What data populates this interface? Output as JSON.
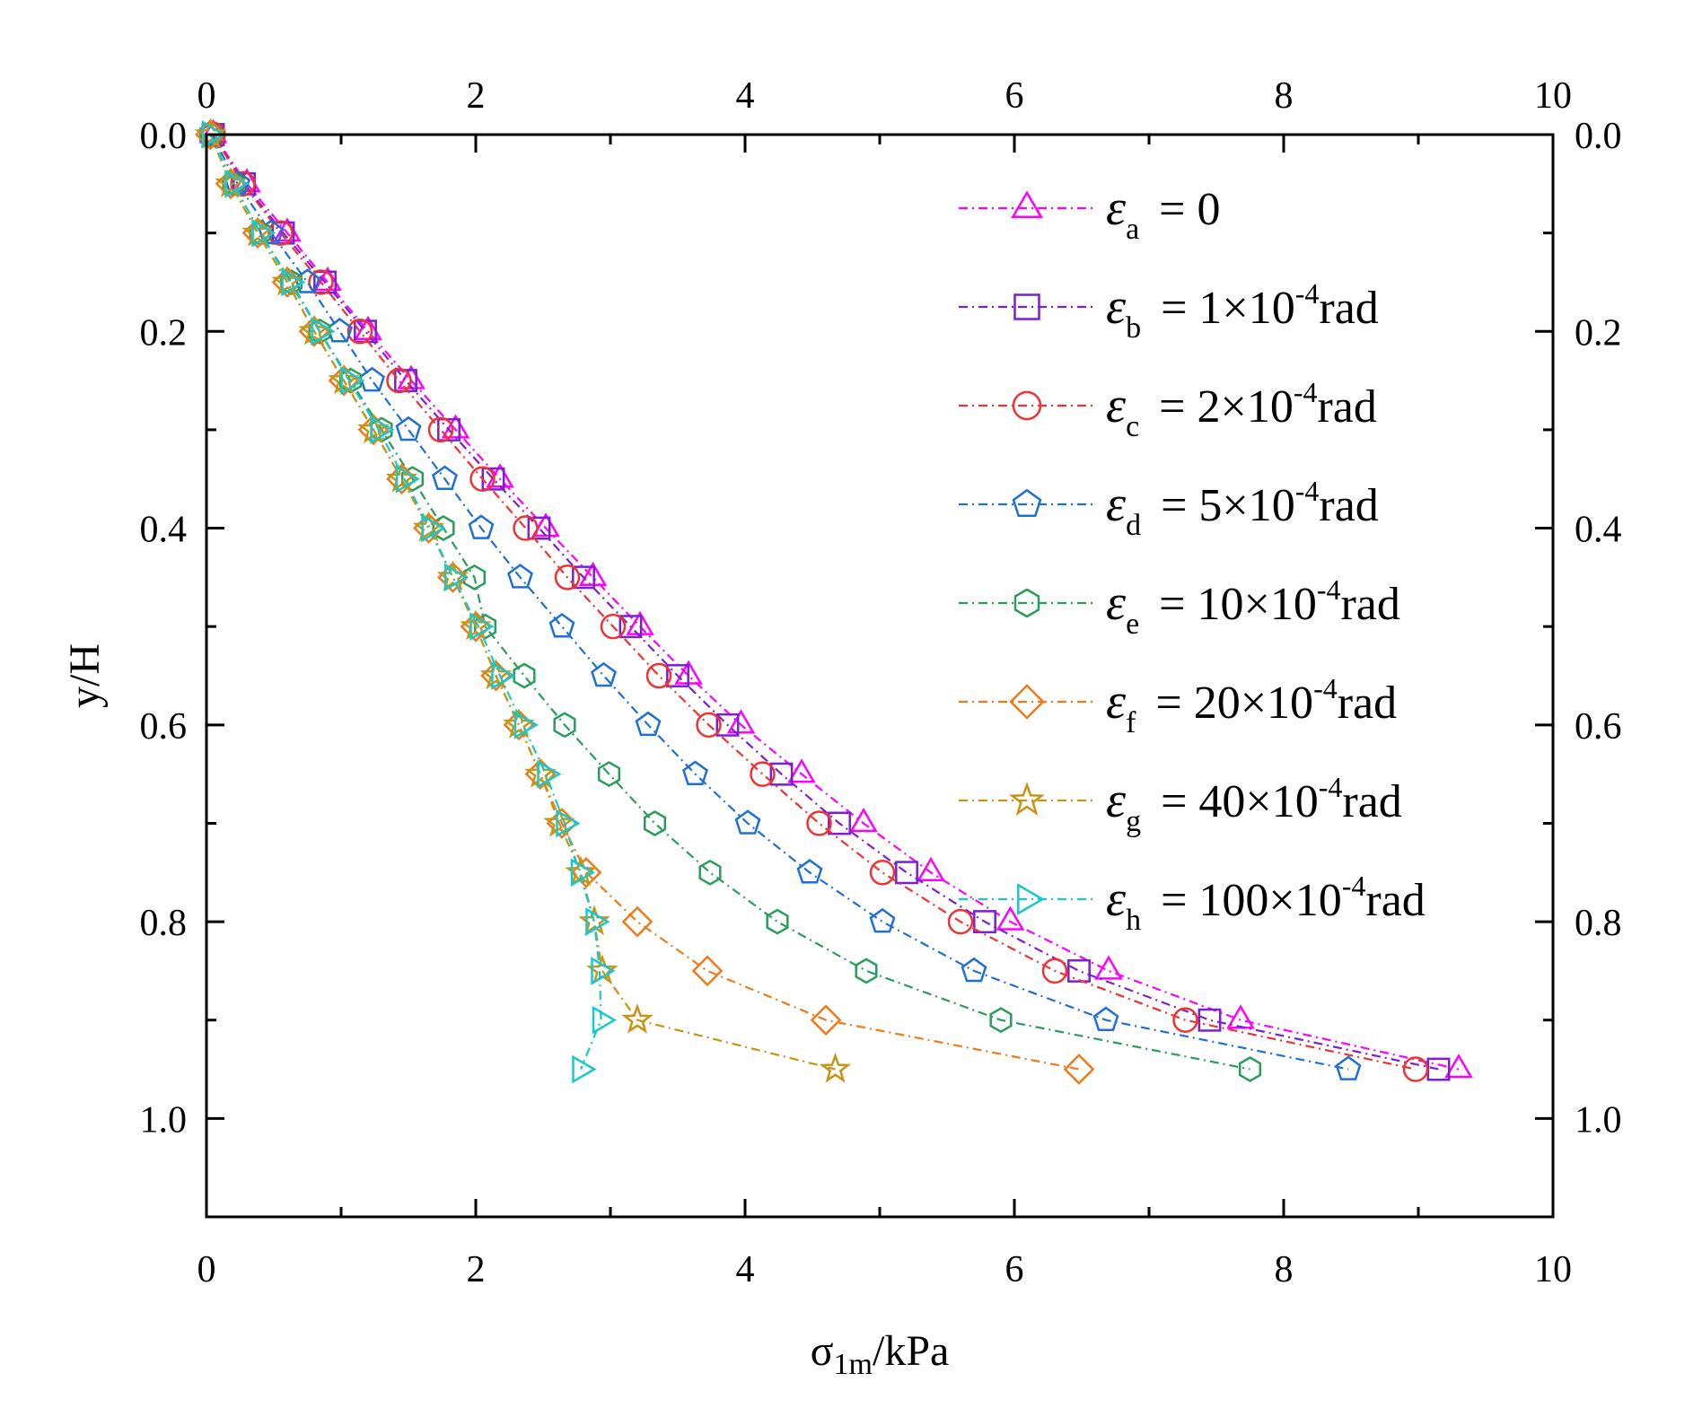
{
  "chart_data": {
    "type": "line",
    "xlabel": "σ1m/kPa",
    "xlabel_main": "σ",
    "xlabel_sub": "1m",
    "xlabel_rest": "/kPa",
    "ylabel": "y/H",
    "xlim": [
      0,
      10
    ],
    "ylim": [
      0,
      1.1
    ],
    "y_inverted": true,
    "x_ticks": [
      0,
      2,
      4,
      6,
      8,
      10
    ],
    "x_tick_labels": [
      "0",
      "2",
      "4",
      "6",
      "8",
      "10"
    ],
    "y_ticks": [
      0,
      0.2,
      0.4,
      0.6,
      0.8,
      1.0
    ],
    "y_tick_labels": [
      "0.0",
      "0.2",
      "0.4",
      "0.6",
      "0.8",
      "1.0"
    ],
    "legend_position": "top-right",
    "y": [
      0,
      0.05,
      0.1,
      0.15,
      0.2,
      0.25,
      0.3,
      0.35,
      0.4,
      0.45,
      0.5,
      0.55,
      0.6,
      0.65,
      0.7,
      0.75,
      0.8,
      0.85,
      0.9,
      0.95
    ],
    "series": [
      {
        "name": "εa = 0",
        "symbol": "ε",
        "sub": "a",
        "label_pre": "= 0",
        "sup": "",
        "label_post": "",
        "marker": "triangle-up",
        "color": "#ff00ff",
        "x": [
          0.05,
          0.3,
          0.6,
          0.9,
          1.2,
          1.52,
          1.85,
          2.18,
          2.52,
          2.87,
          3.22,
          3.58,
          3.97,
          4.42,
          4.88,
          5.38,
          5.97,
          6.7,
          7.68,
          9.3
        ]
      },
      {
        "name": "εb = 1×10-4rad",
        "symbol": "ε",
        "sub": "b",
        "label_pre": "= 1×10",
        "sup": "-4",
        "label_post": "rad",
        "marker": "square",
        "color": "#7a1fd6",
        "x": [
          0.05,
          0.28,
          0.57,
          0.88,
          1.18,
          1.48,
          1.8,
          2.13,
          2.47,
          2.8,
          3.15,
          3.5,
          3.87,
          4.27,
          4.7,
          5.2,
          5.78,
          6.48,
          7.45,
          9.15
        ]
      },
      {
        "name": "εc = 2×10-4rad",
        "symbol": "ε",
        "sub": "c",
        "label_pre": "= 2×10",
        "sup": "-4",
        "label_post": "rad",
        "marker": "circle",
        "color": "#ee3333",
        "x": [
          0.05,
          0.27,
          0.55,
          0.85,
          1.14,
          1.43,
          1.74,
          2.05,
          2.37,
          2.68,
          3.02,
          3.36,
          3.73,
          4.13,
          4.55,
          5.02,
          5.6,
          6.3,
          7.27,
          8.98
        ]
      },
      {
        "name": "εd = 5×10-4rad",
        "symbol": "ε",
        "sub": "d",
        "label_pre": "= 5×10",
        "sup": "-4",
        "label_post": "rad",
        "marker": "pentagon",
        "color": "#1f6fd8",
        "x": [
          0.04,
          0.23,
          0.48,
          0.75,
          0.99,
          1.23,
          1.5,
          1.77,
          2.04,
          2.33,
          2.64,
          2.95,
          3.28,
          3.63,
          4.02,
          4.48,
          5.02,
          5.7,
          6.68,
          8.48
        ]
      },
      {
        "name": "εe = 10×10-4rad",
        "symbol": "ε",
        "sub": "e",
        "label_pre": "= 10×10",
        "sup": "-4",
        "label_post": "rad",
        "marker": "hexagon",
        "color": "#2a9d5c",
        "x": [
          0.03,
          0.2,
          0.4,
          0.63,
          0.84,
          1.07,
          1.3,
          1.53,
          1.76,
          1.99,
          2.07,
          2.36,
          2.66,
          2.99,
          3.33,
          3.74,
          4.24,
          4.9,
          5.9,
          7.75
        ]
      },
      {
        "name": "εf = 20×10-4rad",
        "symbol": "ε",
        "sub": "f",
        "label_pre": "= 20×10",
        "sup": "-4",
        "label_post": "rad",
        "marker": "diamond",
        "color": "#f07a1a",
        "x": [
          0.03,
          0.18,
          0.38,
          0.6,
          0.8,
          1.02,
          1.24,
          1.45,
          1.65,
          1.83,
          2.0,
          2.15,
          2.32,
          2.48,
          2.64,
          2.82,
          3.2,
          3.72,
          4.6,
          6.48
        ]
      },
      {
        "name": "εg = 40×10-4rad",
        "symbol": "ε",
        "sub": "g",
        "label_pre": "= 40×10",
        "sup": "-4",
        "label_post": "rad",
        "marker": "star",
        "color": "#c89414",
        "x": [
          0.03,
          0.18,
          0.38,
          0.6,
          0.8,
          1.02,
          1.24,
          1.45,
          1.65,
          1.83,
          2.0,
          2.15,
          2.32,
          2.48,
          2.62,
          2.78,
          2.88,
          2.94,
          3.2,
          4.67
        ]
      },
      {
        "name": "εh = 100×10-4rad",
        "symbol": "ε",
        "sub": "h",
        "label_pre": "= 100×10",
        "sup": "-4",
        "label_post": "rad",
        "marker": "triangle-right",
        "color": "#17c8cf",
        "x": [
          0.03,
          0.2,
          0.4,
          0.62,
          0.84,
          1.06,
          1.28,
          1.47,
          1.66,
          1.83,
          2.02,
          2.18,
          2.35,
          2.52,
          2.66,
          2.77,
          2.88,
          2.92,
          2.93,
          2.78
        ]
      }
    ]
  }
}
